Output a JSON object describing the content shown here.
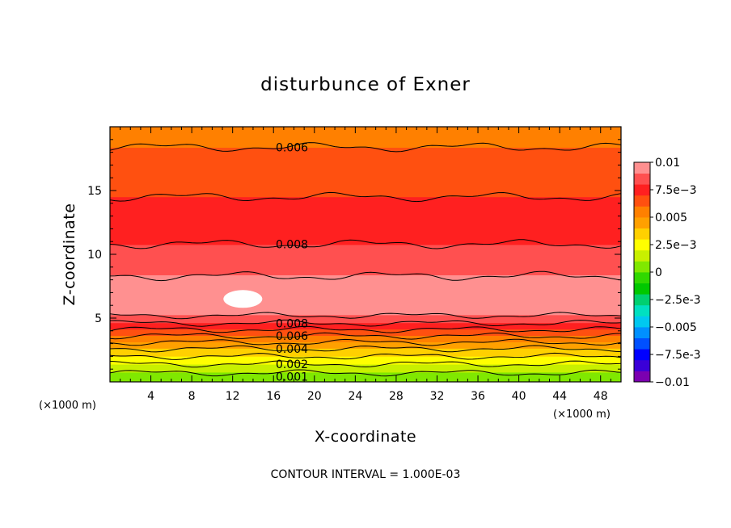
{
  "chart_data": {
    "type": "heatmap",
    "title": "disturbunce of Exner",
    "xlabel": "X-coordinate",
    "ylabel": "Z-coordinate",
    "x_unit_left": "(×1000 m)",
    "x_unit_right": "(×1000 m)",
    "xlim": [
      0,
      50
    ],
    "ylim": [
      0,
      20
    ],
    "x_ticks": [
      4,
      8,
      12,
      16,
      20,
      24,
      28,
      32,
      36,
      40,
      44,
      48
    ],
    "x_tick_labels": [
      "4",
      "8",
      "12",
      "16",
      "20",
      "24",
      "28",
      "32",
      "36",
      "40",
      "44",
      "48"
    ],
    "y_ticks": [
      5,
      10,
      15
    ],
    "y_tick_labels": [
      "5",
      "10",
      "15"
    ],
    "footer": "CONTOUR INTERVAL = 1.000E-03",
    "colorbar": {
      "range": [
        -0.01,
        0.01
      ],
      "labels": [
        "0.01",
        "7.5e-3",
        "0.005",
        "2.5e-3",
        "0",
        "-2.5e-3",
        "-0.005",
        "-7.5e-3",
        "-0.01"
      ],
      "colors": [
        "#7b00b0",
        "#3a00d8",
        "#0000ff",
        "#0050ff",
        "#0090ff",
        "#00c8f0",
        "#00e0c0",
        "#00d070",
        "#00c800",
        "#30d800",
        "#80e800",
        "#c8f000",
        "#ffff00",
        "#ffd000",
        "#ffa000",
        "#ff8000",
        "#ff5010",
        "#ff2020",
        "#ff5050",
        "#ff9090"
      ]
    },
    "contour_labels": [
      "0.006",
      "0.008",
      "0.008",
      "0.006",
      "0.004",
      "0.002",
      "0.001"
    ],
    "profile": [
      {
        "z": 0.0,
        "value": 0.0
      },
      {
        "z": 0.7,
        "value": 0.001
      },
      {
        "z": 1.4,
        "value": 0.002
      },
      {
        "z": 2.0,
        "value": 0.003
      },
      {
        "z": 2.6,
        "value": 0.004
      },
      {
        "z": 3.1,
        "value": 0.005
      },
      {
        "z": 3.6,
        "value": 0.006
      },
      {
        "z": 4.1,
        "value": 0.007
      },
      {
        "z": 4.6,
        "value": 0.008
      },
      {
        "z": 5.2,
        "value": 0.009
      },
      {
        "z": 6.5,
        "value": 0.01
      },
      {
        "z": 8.0,
        "value": 0.0092
      },
      {
        "z": 9.5,
        "value": 0.0085
      },
      {
        "z": 10.8,
        "value": 0.008
      },
      {
        "z": 13.0,
        "value": 0.0075
      },
      {
        "z": 14.5,
        "value": 0.007
      },
      {
        "z": 16.5,
        "value": 0.0065
      },
      {
        "z": 18.4,
        "value": 0.006
      },
      {
        "z": 20.0,
        "value": 0.0056
      }
    ],
    "contour_levels": [
      {
        "value": 0.001,
        "z": 0.7
      },
      {
        "value": 0.002,
        "z": 1.4
      },
      {
        "value": 0.003,
        "z": 2.0
      },
      {
        "value": 0.004,
        "z": 2.6
      },
      {
        "value": 0.005,
        "z": 3.1
      },
      {
        "value": 0.006,
        "z": 3.6
      },
      {
        "value": 0.007,
        "z": 4.1
      },
      {
        "value": 0.008,
        "z": 4.6
      },
      {
        "value": 0.009,
        "z": 5.2
      },
      {
        "value": 0.009,
        "z": 8.3
      },
      {
        "value": 0.008,
        "z": 10.8
      },
      {
        "value": 0.007,
        "z": 14.5
      },
      {
        "value": 0.006,
        "z": 18.4
      }
    ],
    "max_region": {
      "x": 13,
      "z": 6.5,
      "value": 0.0105
    }
  }
}
